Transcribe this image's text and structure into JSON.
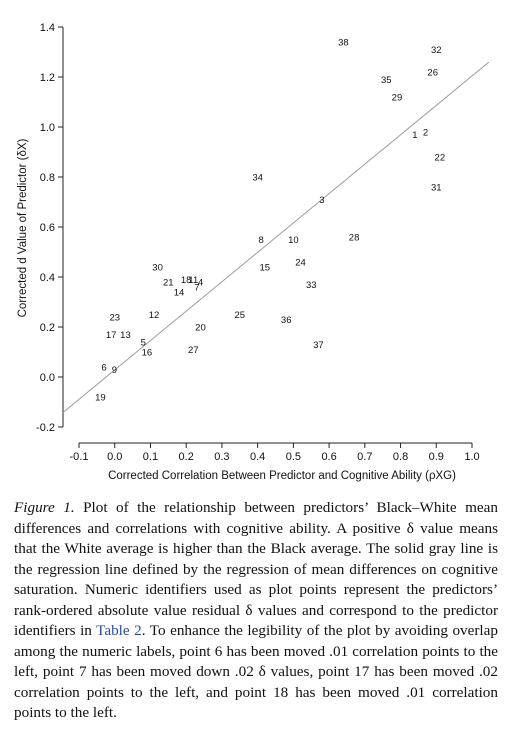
{
  "chart_data": {
    "type": "scatter",
    "xlabel": "Corrected Correlation Between Predictor and Cognitive Ability (ρXG)",
    "ylabel": "Corrected d Value of Predictor (δX)",
    "xlim": [
      -0.1,
      1.0
    ],
    "ylim": [
      -0.2,
      1.4
    ],
    "x_ticks": [
      "-0.1",
      "0.0",
      "0.1",
      "0.2",
      "0.3",
      "0.4",
      "0.5",
      "0.6",
      "0.7",
      "0.8",
      "0.9",
      "1.0"
    ],
    "y_ticks": [
      "-0.2",
      "0.0",
      "0.2",
      "0.4",
      "0.6",
      "0.8",
      "1.0",
      "1.2",
      "1.4"
    ],
    "regression_line": {
      "x": [
        -0.1,
        1.0
      ],
      "y": [
        -0.07,
        1.18
      ]
    },
    "points": [
      {
        "label": "38",
        "x": 0.64,
        "y": 1.34
      },
      {
        "label": "32",
        "x": 0.9,
        "y": 1.31
      },
      {
        "label": "26",
        "x": 0.89,
        "y": 1.22
      },
      {
        "label": "35",
        "x": 0.76,
        "y": 1.19
      },
      {
        "label": "29",
        "x": 0.79,
        "y": 1.12
      },
      {
        "label": "1",
        "x": 0.84,
        "y": 0.97
      },
      {
        "label": "2",
        "x": 0.87,
        "y": 0.98
      },
      {
        "label": "22",
        "x": 0.91,
        "y": 0.88
      },
      {
        "label": "31",
        "x": 0.9,
        "y": 0.76
      },
      {
        "label": "34",
        "x": 0.4,
        "y": 0.8
      },
      {
        "label": "3",
        "x": 0.58,
        "y": 0.71
      },
      {
        "label": "8",
        "x": 0.41,
        "y": 0.55
      },
      {
        "label": "10",
        "x": 0.5,
        "y": 0.55
      },
      {
        "label": "28",
        "x": 0.67,
        "y": 0.56
      },
      {
        "label": "15",
        "x": 0.42,
        "y": 0.44
      },
      {
        "label": "24",
        "x": 0.52,
        "y": 0.46
      },
      {
        "label": "33",
        "x": 0.55,
        "y": 0.37
      },
      {
        "label": "30",
        "x": 0.12,
        "y": 0.44
      },
      {
        "label": "21",
        "x": 0.15,
        "y": 0.38
      },
      {
        "label": "18",
        "x": 0.2,
        "y": 0.39
      },
      {
        "label": "11",
        "x": 0.22,
        "y": 0.39
      },
      {
        "label": "4",
        "x": 0.24,
        "y": 0.38
      },
      {
        "label": "7",
        "x": 0.23,
        "y": 0.36
      },
      {
        "label": "14",
        "x": 0.18,
        "y": 0.34
      },
      {
        "label": "23",
        "x": 0.0,
        "y": 0.24
      },
      {
        "label": "12",
        "x": 0.11,
        "y": 0.25
      },
      {
        "label": "25",
        "x": 0.35,
        "y": 0.25
      },
      {
        "label": "36",
        "x": 0.48,
        "y": 0.23
      },
      {
        "label": "20",
        "x": 0.24,
        "y": 0.2
      },
      {
        "label": "17",
        "x": -0.01,
        "y": 0.17
      },
      {
        "label": "13",
        "x": 0.03,
        "y": 0.17
      },
      {
        "label": "5",
        "x": 0.08,
        "y": 0.14
      },
      {
        "label": "37",
        "x": 0.57,
        "y": 0.13
      },
      {
        "label": "27",
        "x": 0.22,
        "y": 0.11
      },
      {
        "label": "16",
        "x": 0.09,
        "y": 0.1
      },
      {
        "label": "6",
        "x": -0.03,
        "y": 0.04
      },
      {
        "label": "9",
        "x": -0.001,
        "y": 0.03
      },
      {
        "label": "19",
        "x": -0.04,
        "y": -0.08
      }
    ]
  },
  "caption": {
    "figure_label": "Figure 1.",
    "text_before_link": "Plot of the relationship between predictors’ Black–White mean differences and correlations with cognitive ability. A positive δ value means that the White average is higher than the Black average. The solid gray line is the regression line defined by the regression of mean differences on cognitive saturation. Numeric identifiers used as plot points represent the predictors’ rank-ordered absolute value residual δ values and correspond to the predictor identifiers in ",
    "link_text": "Table 2",
    "text_after_link": ". To enhance the legibility of the plot by avoiding overlap among the numeric labels, point 6 has been moved .01 correlation points to the left, point 7 has been moved down .02 δ values, point 17 has been moved .02 correlation points to the left, and point 18 has been moved .01 correlation points to the left."
  },
  "colors": {
    "regression_line": "#9a9a9a",
    "axis": "#222222",
    "text": "#111111",
    "link": "#2a4aa8"
  }
}
